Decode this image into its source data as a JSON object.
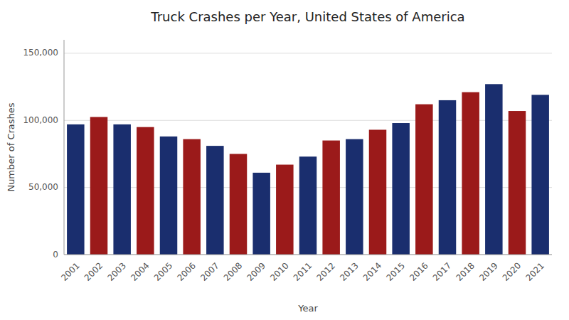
{
  "chart_data": {
    "type": "bar",
    "title": "Truck Crashes per Year, United States of America",
    "xlabel": "Year",
    "ylabel": "Number of Crashes",
    "categories": [
      "2001",
      "2002",
      "2003",
      "2004",
      "2005",
      "2006",
      "2007",
      "2008",
      "2009",
      "2010",
      "2011",
      "2012",
      "2013",
      "2014",
      "2015",
      "2016",
      "2017",
      "2018",
      "2019",
      "2020",
      "2021"
    ],
    "values": [
      97000,
      102500,
      97000,
      95000,
      88000,
      86000,
      81000,
      75000,
      61000,
      67000,
      73000,
      85000,
      86000,
      93000,
      98000,
      112000,
      115000,
      121000,
      127000,
      107000,
      119000
    ],
    "colors": [
      "#1a2e6e",
      "#9b1a1a",
      "#1a2e6e",
      "#9b1a1a",
      "#1a2e6e",
      "#9b1a1a",
      "#1a2e6e",
      "#9b1a1a",
      "#1a2e6e",
      "#9b1a1a",
      "#1a2e6e",
      "#9b1a1a",
      "#1a2e6e",
      "#9b1a1a",
      "#1a2e6e",
      "#9b1a1a",
      "#1a2e6e",
      "#9b1a1a",
      "#1a2e6e",
      "#9b1a1a",
      "#1a2e6e"
    ],
    "ylim": [
      0,
      160000
    ],
    "yticks": [
      0,
      {
        "value": 50000,
        "label": "50,000"
      },
      {
        "value": 100000,
        "label": "100,000"
      },
      {
        "value": 150000,
        "label": "150,000"
      }
    ],
    "grid": true
  }
}
